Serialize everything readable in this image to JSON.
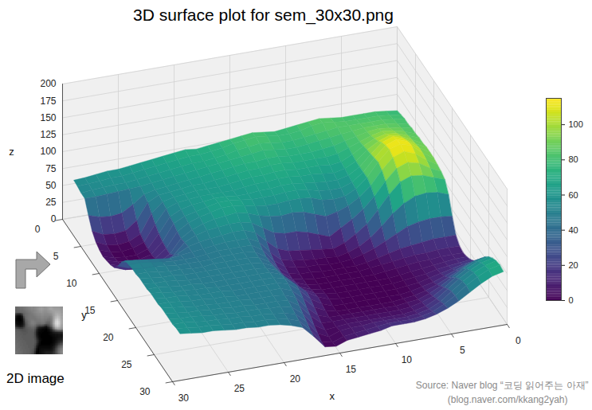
{
  "chart_data": {
    "type": "surface",
    "title": "3D surface plot for sem_30x30.png",
    "x_label": "x",
    "y_label": "y",
    "z_label": "z",
    "color": "viridis",
    "grid": true,
    "xlim": [
      0,
      30
    ],
    "xticks": [
      0,
      5,
      10,
      15,
      20,
      25,
      30
    ],
    "ylim": [
      0,
      30
    ],
    "yticks": [
      0,
      5,
      10,
      15,
      20,
      25,
      30
    ],
    "zlim": [
      0,
      200
    ],
    "zticks": [
      0,
      25,
      50,
      75,
      100,
      125,
      150,
      175,
      200
    ],
    "colorbar": {
      "lim": [
        0,
        115
      ],
      "ticks": [
        0,
        20,
        40,
        60,
        80,
        100
      ]
    },
    "x": [
      0,
      1,
      2,
      3,
      4,
      5,
      6,
      7,
      8,
      9,
      10,
      11,
      12,
      13,
      14,
      15,
      16,
      17,
      18,
      19,
      20,
      21,
      22,
      23,
      24,
      25,
      26,
      27,
      28,
      29
    ],
    "y": [
      0,
      1,
      2,
      3,
      4,
      5,
      6,
      7,
      8,
      9,
      10,
      11,
      12,
      13,
      14,
      15,
      16,
      17,
      18,
      19,
      20,
      21,
      22,
      23,
      24,
      25,
      26,
      27,
      28,
      29
    ],
    "z": [
      [
        76,
        78,
        80,
        80,
        80,
        80,
        82,
        84,
        82,
        80,
        78,
        76,
        78,
        80,
        78,
        76,
        74,
        72,
        70,
        72,
        70,
        68,
        66,
        64,
        62,
        60,
        60,
        58,
        56,
        55
      ],
      [
        78,
        80,
        82,
        82,
        82,
        82,
        84,
        86,
        84,
        80,
        78,
        78,
        80,
        82,
        80,
        78,
        74,
        72,
        70,
        70,
        68,
        66,
        64,
        62,
        60,
        58,
        58,
        56,
        55,
        54
      ],
      [
        80,
        82,
        84,
        84,
        84,
        84,
        84,
        82,
        80,
        78,
        76,
        76,
        78,
        80,
        78,
        76,
        72,
        70,
        68,
        68,
        66,
        64,
        62,
        60,
        58,
        56,
        56,
        55,
        54,
        52
      ],
      [
        80,
        84,
        86,
        86,
        86,
        84,
        82,
        80,
        78,
        76,
        74,
        74,
        76,
        78,
        76,
        74,
        72,
        70,
        68,
        66,
        64,
        62,
        60,
        58,
        56,
        55,
        54,
        53,
        52,
        52
      ],
      [
        82,
        86,
        88,
        90,
        88,
        84,
        80,
        76,
        74,
        72,
        72,
        72,
        74,
        74,
        72,
        72,
        70,
        68,
        66,
        64,
        62,
        60,
        58,
        56,
        52,
        40,
        30,
        28,
        30,
        35
      ],
      [
        82,
        88,
        92,
        94,
        90,
        84,
        78,
        72,
        70,
        70,
        70,
        70,
        72,
        72,
        70,
        70,
        68,
        66,
        64,
        62,
        62,
        60,
        58,
        56,
        48,
        24,
        12,
        10,
        12,
        20
      ],
      [
        84,
        90,
        96,
        98,
        94,
        86,
        76,
        68,
        66,
        68,
        68,
        68,
        70,
        70,
        68,
        68,
        66,
        64,
        62,
        62,
        62,
        60,
        58,
        54,
        40,
        12,
        4,
        2,
        4,
        12
      ],
      [
        84,
        92,
        100,
        104,
        98,
        88,
        74,
        66,
        62,
        64,
        66,
        66,
        68,
        68,
        66,
        66,
        64,
        62,
        62,
        62,
        62,
        60,
        58,
        52,
        32,
        8,
        2,
        0,
        2,
        8
      ],
      [
        86,
        94,
        104,
        110,
        104,
        90,
        74,
        64,
        60,
        60,
        62,
        64,
        66,
        66,
        64,
        64,
        62,
        62,
        64,
        64,
        62,
        60,
        56,
        48,
        26,
        6,
        0,
        0,
        2,
        6
      ],
      [
        86,
        96,
        108,
        114,
        108,
        92,
        74,
        62,
        56,
        56,
        58,
        62,
        64,
        64,
        62,
        62,
        62,
        64,
        66,
        66,
        62,
        58,
        54,
        46,
        22,
        6,
        2,
        2,
        4,
        8
      ],
      [
        86,
        96,
        110,
        115,
        110,
        94,
        74,
        60,
        52,
        50,
        52,
        58,
        60,
        60,
        58,
        58,
        60,
        64,
        66,
        66,
        62,
        58,
        52,
        42,
        20,
        8,
        4,
        4,
        6,
        10
      ],
      [
        84,
        94,
        106,
        112,
        106,
        90,
        70,
        56,
        46,
        40,
        36,
        42,
        48,
        50,
        48,
        50,
        54,
        60,
        64,
        62,
        60,
        56,
        50,
        40,
        20,
        10,
        6,
        6,
        8,
        14
      ],
      [
        82,
        90,
        100,
        104,
        98,
        82,
        62,
        46,
        34,
        24,
        14,
        20,
        26,
        30,
        30,
        34,
        44,
        54,
        58,
        58,
        56,
        54,
        50,
        42,
        26,
        16,
        12,
        14,
        18,
        24
      ],
      [
        78,
        84,
        90,
        92,
        86,
        70,
        50,
        32,
        20,
        10,
        4,
        6,
        8,
        10,
        12,
        18,
        32,
        48,
        54,
        54,
        52,
        50,
        48,
        44,
        36,
        30,
        28,
        30,
        34,
        38
      ],
      [
        64,
        70,
        72,
        70,
        62,
        50,
        34,
        20,
        10,
        4,
        0,
        2,
        2,
        4,
        6,
        10,
        24,
        42,
        50,
        50,
        50,
        48,
        46,
        44,
        42,
        40,
        42,
        44,
        46,
        48
      ],
      [
        40,
        42,
        42,
        40,
        36,
        28,
        20,
        12,
        6,
        2,
        0,
        0,
        2,
        2,
        4,
        8,
        20,
        38,
        48,
        48,
        48,
        48,
        46,
        44,
        44,
        44,
        46,
        48,
        50,
        50
      ],
      [
        20,
        20,
        20,
        18,
        16,
        14,
        10,
        6,
        2,
        0,
        0,
        0,
        0,
        2,
        2,
        6,
        18,
        36,
        46,
        48,
        48,
        48,
        46,
        46,
        46,
        46,
        48,
        50,
        50,
        52
      ],
      [
        12,
        12,
        12,
        10,
        10,
        8,
        6,
        4,
        2,
        0,
        0,
        0,
        0,
        0,
        2,
        6,
        18,
        36,
        46,
        48,
        48,
        48,
        48,
        46,
        46,
        48,
        48,
        50,
        52,
        52
      ],
      [
        10,
        10,
        10,
        8,
        8,
        6,
        4,
        2,
        0,
        0,
        0,
        0,
        0,
        0,
        2,
        8,
        20,
        38,
        46,
        48,
        48,
        48,
        48,
        48,
        48,
        48,
        50,
        50,
        52,
        54
      ],
      [
        12,
        12,
        10,
        8,
        6,
        4,
        2,
        0,
        0,
        0,
        0,
        0,
        0,
        0,
        4,
        10,
        24,
        40,
        46,
        48,
        48,
        48,
        48,
        48,
        48,
        48,
        50,
        52,
        52,
        54
      ],
      [
        16,
        14,
        12,
        10,
        6,
        4,
        2,
        0,
        0,
        0,
        0,
        0,
        0,
        2,
        6,
        14,
        28,
        42,
        48,
        48,
        48,
        48,
        48,
        48,
        48,
        50,
        50,
        52,
        54,
        54
      ],
      [
        22,
        20,
        16,
        12,
        8,
        4,
        2,
        0,
        0,
        0,
        0,
        0,
        0,
        2,
        8,
        18,
        32,
        44,
        48,
        48,
        48,
        48,
        48,
        48,
        50,
        50,
        52,
        52,
        54,
        56
      ],
      [
        32,
        28,
        22,
        16,
        10,
        6,
        2,
        0,
        0,
        0,
        0,
        0,
        0,
        0,
        6,
        16,
        32,
        44,
        48,
        48,
        48,
        48,
        48,
        50,
        50,
        50,
        52,
        54,
        54,
        56
      ],
      [
        42,
        38,
        30,
        22,
        14,
        8,
        4,
        2,
        0,
        0,
        0,
        0,
        0,
        0,
        4,
        12,
        28,
        42,
        48,
        48,
        48,
        48,
        48,
        50,
        50,
        52,
        52,
        54,
        56,
        56
      ],
      [
        52,
        48,
        40,
        30,
        20,
        12,
        6,
        4,
        2,
        2,
        2,
        2,
        2,
        2,
        2,
        8,
        22,
        40,
        46,
        48,
        48,
        48,
        50,
        50,
        50,
        52,
        52,
        54,
        56,
        58
      ],
      [
        60,
        56,
        48,
        38,
        26,
        16,
        10,
        6,
        4,
        4,
        4,
        4,
        4,
        4,
        4,
        4,
        18,
        36,
        46,
        48,
        48,
        48,
        50,
        50,
        52,
        52,
        54,
        54,
        56,
        58
      ],
      [
        66,
        62,
        54,
        44,
        32,
        20,
        12,
        8,
        6,
        6,
        6,
        6,
        6,
        6,
        4,
        2,
        12,
        32,
        44,
        48,
        48,
        50,
        50,
        50,
        52,
        52,
        54,
        56,
        56,
        58
      ],
      [
        70,
        66,
        58,
        48,
        36,
        24,
        16,
        12,
        10,
        10,
        10,
        10,
        8,
        8,
        6,
        0,
        8,
        28,
        42,
        46,
        48,
        50,
        50,
        52,
        52,
        54,
        54,
        56,
        58,
        58
      ],
      [
        72,
        68,
        60,
        50,
        38,
        28,
        20,
        16,
        14,
        14,
        14,
        12,
        10,
        8,
        6,
        0,
        4,
        24,
        40,
        46,
        48,
        50,
        50,
        52,
        52,
        54,
        56,
        56,
        58,
        60
      ],
      [
        70,
        66,
        58,
        48,
        38,
        30,
        24,
        20,
        18,
        18,
        18,
        14,
        12,
        10,
        8,
        2,
        4,
        22,
        38,
        44,
        48,
        50,
        50,
        52,
        52,
        54,
        56,
        56,
        58,
        60
      ]
    ],
    "source": [
      "Source: Naver blog “코딩 읽어주는 아재”",
      "(blog.naver.com/kkang2yah)"
    ],
    "annotations": [
      "2D image"
    ]
  }
}
